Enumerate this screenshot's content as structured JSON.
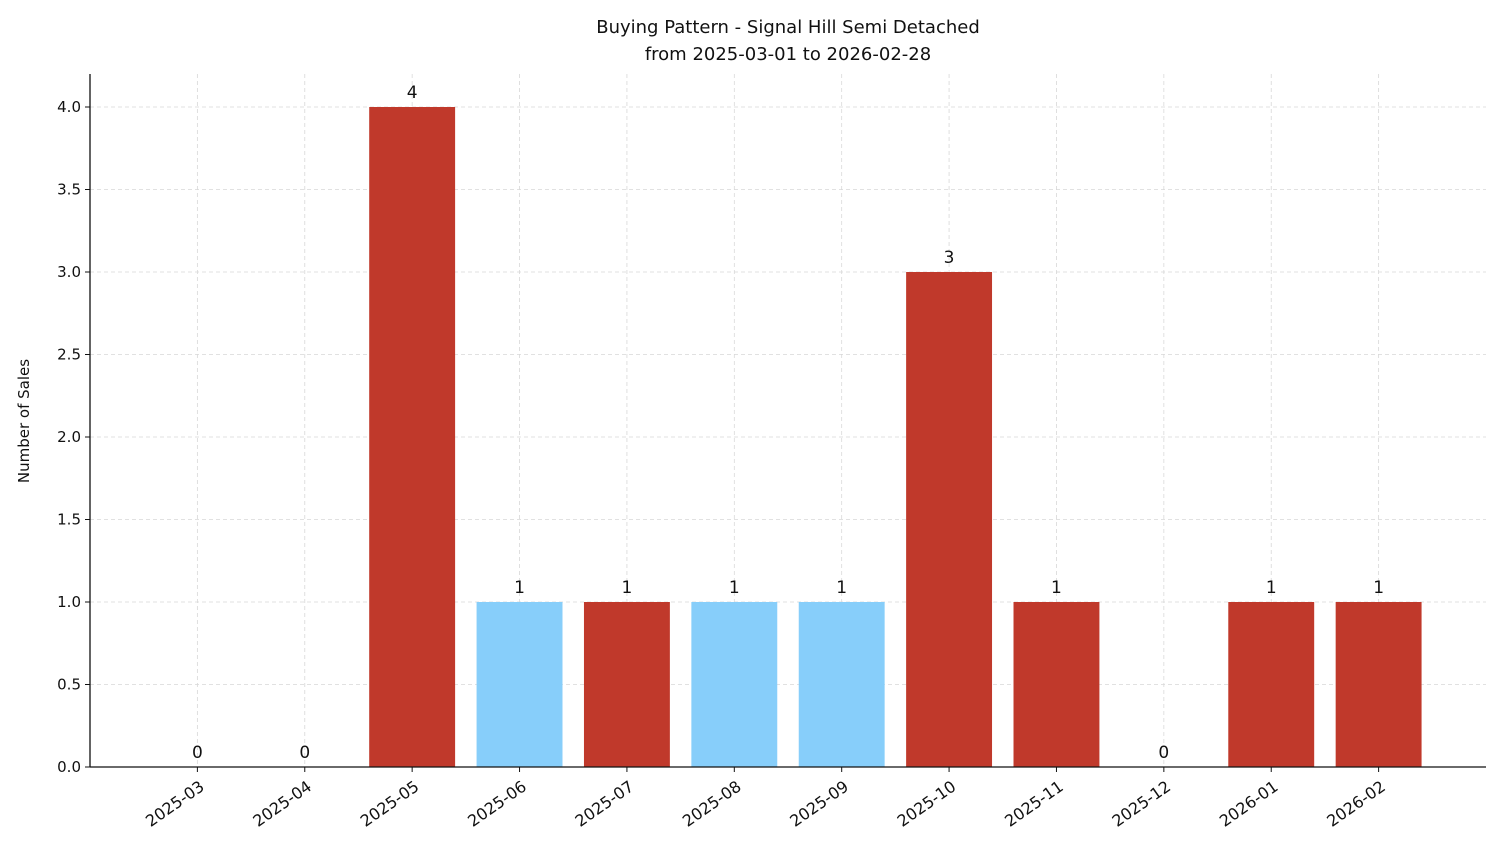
{
  "chart_data": {
    "type": "bar",
    "title": "Buying Pattern - Signal Hill Semi Detached",
    "subtitle": "from 2025-03-01 to 2026-02-28",
    "y_label": "Number of Sales",
    "categories": [
      "2025-03",
      "2025-04",
      "2025-05",
      "2025-06",
      "2025-07",
      "2025-08",
      "2025-09",
      "2025-10",
      "2025-11",
      "2025-12",
      "2026-01",
      "2026-02"
    ],
    "values": [
      0,
      0,
      4,
      1,
      1,
      1,
      1,
      3,
      1,
      0,
      1,
      1
    ],
    "colors": [
      "#c0392b",
      "#c0392b",
      "#c0392b",
      "#87cefa",
      "#c0392b",
      "#87cefa",
      "#87cefa",
      "#c0392b",
      "#c0392b",
      "#c0392b",
      "#c0392b",
      "#c0392b"
    ],
    "ylim": [
      0,
      4.2
    ],
    "yticks": [
      {
        "value": 0,
        "label": "0.0"
      },
      {
        "value": 0.5,
        "label": "0.5"
      },
      {
        "value": 1,
        "label": "1.0"
      },
      {
        "value": 1.5,
        "label": "1.5"
      },
      {
        "value": 2,
        "label": "2.0"
      },
      {
        "value": 2.5,
        "label": "2.5"
      },
      {
        "value": 3,
        "label": "3.0"
      },
      {
        "value": 3.5,
        "label": "3.5"
      },
      {
        "value": 4,
        "label": "4.0"
      }
    ],
    "grid": true
  }
}
